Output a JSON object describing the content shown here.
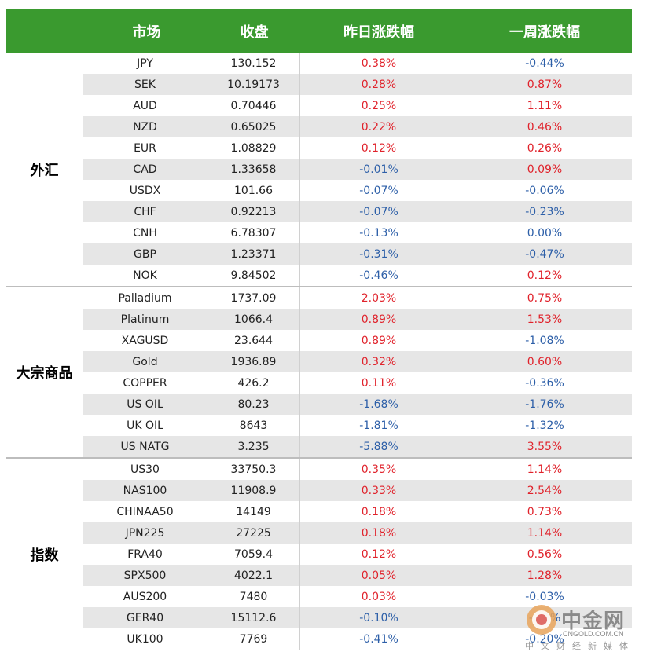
{
  "header": {
    "market": "市场",
    "close": "收盘",
    "daily": "昨日涨跌幅",
    "weekly": "一周涨跌幅"
  },
  "sections": [
    {
      "label": "外汇",
      "rows": [
        {
          "name": "JPY",
          "close": "130.152",
          "daily": "0.38%",
          "weekly": "-0.44%"
        },
        {
          "name": "SEK",
          "close": "10.19173",
          "daily": "0.28%",
          "weekly": "0.87%"
        },
        {
          "name": "AUD",
          "close": "0.70446",
          "daily": "0.25%",
          "weekly": "1.11%"
        },
        {
          "name": "NZD",
          "close": "0.65025",
          "daily": "0.22%",
          "weekly": "0.46%"
        },
        {
          "name": "EUR",
          "close": "1.08829",
          "daily": "0.12%",
          "weekly": "0.26%"
        },
        {
          "name": "CAD",
          "close": "1.33658",
          "daily": "-0.01%",
          "weekly": "0.09%"
        },
        {
          "name": "USDX",
          "close": "101.66",
          "daily": "-0.07%",
          "weekly": "-0.06%"
        },
        {
          "name": "CHF",
          "close": "0.92213",
          "daily": "-0.07%",
          "weekly": "-0.23%"
        },
        {
          "name": "CNH",
          "close": "6.78307",
          "daily": "-0.13%",
          "weekly": "0.00%"
        },
        {
          "name": "GBP",
          "close": "1.23371",
          "daily": "-0.31%",
          "weekly": "-0.47%"
        },
        {
          "name": "NOK",
          "close": "9.84502",
          "daily": "-0.46%",
          "weekly": "0.12%"
        }
      ]
    },
    {
      "label": "大宗商品",
      "rows": [
        {
          "name": "Palladium",
          "close": "1737.09",
          "daily": "2.03%",
          "weekly": "0.75%"
        },
        {
          "name": "Platinum",
          "close": "1066.4",
          "daily": "0.89%",
          "weekly": "1.53%"
        },
        {
          "name": "XAGUSD",
          "close": "23.644",
          "daily": "0.89%",
          "weekly": "-1.08%"
        },
        {
          "name": "Gold",
          "close": "1936.89",
          "daily": "0.32%",
          "weekly": "0.60%"
        },
        {
          "name": "COPPER",
          "close": "426.2",
          "daily": "0.11%",
          "weekly": "-0.36%"
        },
        {
          "name": "US OIL",
          "close": "80.23",
          "daily": "-1.68%",
          "weekly": "-1.76%"
        },
        {
          "name": "UK OIL",
          "close": "8643",
          "daily": "-1.81%",
          "weekly": "-1.32%"
        },
        {
          "name": "US NATG",
          "close": "3.235",
          "daily": "-5.88%",
          "weekly": "3.55%"
        }
      ]
    },
    {
      "label": "指数",
      "rows": [
        {
          "name": "US30",
          "close": "33750.3",
          "daily": "0.35%",
          "weekly": "1.14%"
        },
        {
          "name": "NAS100",
          "close": "11908.9",
          "daily": "0.33%",
          "weekly": "2.54%"
        },
        {
          "name": "CHINAA50",
          "close": "14149",
          "daily": "0.18%",
          "weekly": "0.73%"
        },
        {
          "name": "JPN225",
          "close": "27225",
          "daily": "0.18%",
          "weekly": "1.14%"
        },
        {
          "name": "FRA40",
          "close": "7059.4",
          "daily": "0.12%",
          "weekly": "0.56%"
        },
        {
          "name": "SPX500",
          "close": "4022.1",
          "daily": "0.05%",
          "weekly": "1.28%"
        },
        {
          "name": "AUS200",
          "close": "7480",
          "daily": "0.03%",
          "weekly": "-0.03%"
        },
        {
          "name": "GER40",
          "close": "15112.6",
          "daily": "-0.10%",
          "weekly": "-0.1%"
        },
        {
          "name": "UK100",
          "close": "7769",
          "daily": "-0.41%",
          "weekly": "-0.20%"
        }
      ]
    }
  ],
  "colors": {
    "header_bg": "#3a9a2f",
    "positive": "#e0222b",
    "negative": "#2d5fa8",
    "stripe": "#e6e6e6"
  },
  "watermark": {
    "title": "中金网",
    "domain": "CNGOLD.COM.CN",
    "slogan": "中文财经新媒体",
    "logo_icon": "cngold-logo-icon"
  }
}
